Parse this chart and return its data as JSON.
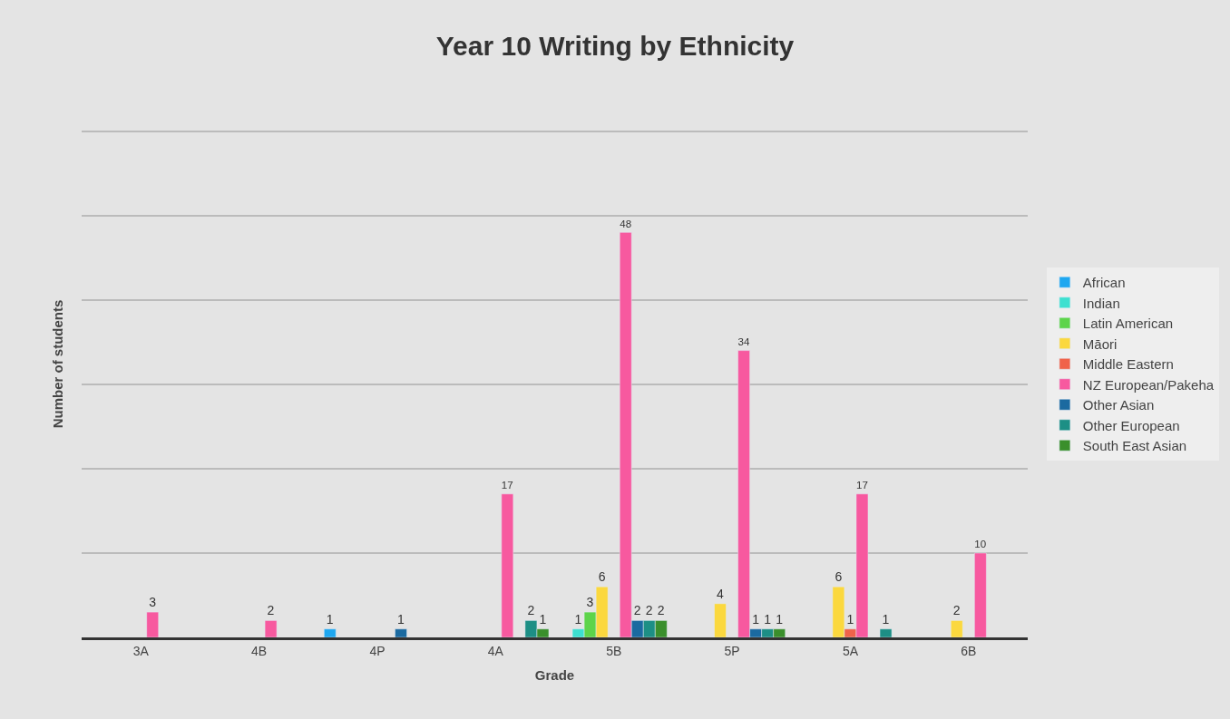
{
  "chart_data": {
    "type": "bar",
    "title": "Year 10 Writing by Ethnicity",
    "xlabel": "Grade",
    "ylabel": "Number of students",
    "categories": [
      "3A",
      "4B",
      "4P",
      "4A",
      "5B",
      "5P",
      "5A",
      "6B"
    ],
    "series": [
      {
        "name": "African",
        "color": "#1ea7f0",
        "values": [
          null,
          null,
          1,
          null,
          null,
          null,
          null,
          null
        ]
      },
      {
        "name": "Indian",
        "color": "#3de0d0",
        "values": [
          null,
          null,
          null,
          null,
          1,
          null,
          null,
          null
        ]
      },
      {
        "name": "Latin American",
        "color": "#5dd44a",
        "values": [
          null,
          null,
          null,
          null,
          3,
          null,
          null,
          null
        ]
      },
      {
        "name": "Māori",
        "color": "#fbd83e",
        "values": [
          null,
          null,
          null,
          null,
          6,
          4,
          6,
          2
        ]
      },
      {
        "name": "Middle Eastern",
        "color": "#f0634a",
        "values": [
          null,
          null,
          null,
          null,
          null,
          null,
          1,
          null
        ]
      },
      {
        "name": "NZ European/Pakeha",
        "color": "#f7599f",
        "values": [
          3,
          2,
          null,
          17,
          48,
          34,
          17,
          10
        ]
      },
      {
        "name": "Other Asian",
        "color": "#1b6aa0",
        "values": [
          null,
          null,
          1,
          null,
          2,
          1,
          null,
          null
        ]
      },
      {
        "name": "Other European",
        "color": "#1d8f85",
        "values": [
          null,
          null,
          null,
          2,
          2,
          1,
          1,
          null
        ]
      },
      {
        "name": "South East Asian",
        "color": "#3a8f2c",
        "values": [
          null,
          null,
          null,
          1,
          2,
          1,
          null,
          null
        ]
      }
    ],
    "yticks": [
      {
        "value": 0,
        "label": null
      },
      {
        "value": 10,
        "label": null
      },
      {
        "value": 20,
        "label": null
      },
      {
        "value": 30,
        "label": null
      },
      {
        "value": 40,
        "label": null
      },
      {
        "value": 50,
        "label": null
      },
      {
        "value": 60,
        "label": null
      }
    ],
    "grid": "y",
    "legend": "right",
    "data_labels": true
  }
}
